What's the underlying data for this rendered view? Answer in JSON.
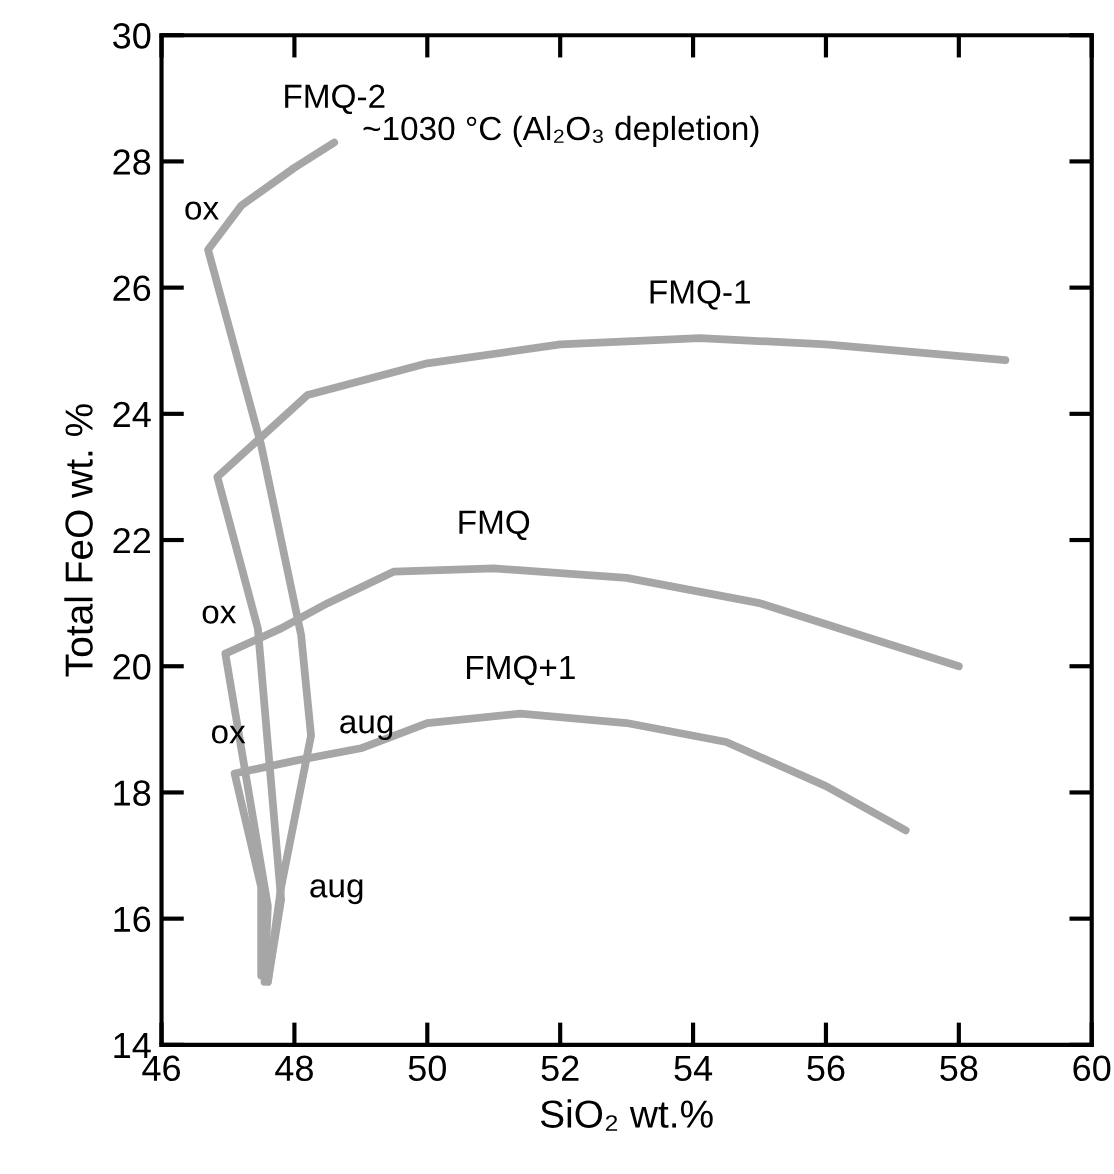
{
  "chart_data": {
    "type": "line",
    "xlabel": "SiO₂ wt.%",
    "ylabel": "Total FeO wt. %",
    "xlim": [
      46,
      60
    ],
    "ylim": [
      14,
      30
    ],
    "xticks": [
      46,
      48,
      50,
      52,
      54,
      56,
      58,
      60
    ],
    "yticks": [
      14,
      16,
      18,
      20,
      22,
      24,
      26,
      28,
      30
    ],
    "grid": false,
    "legend": false,
    "marker": "none",
    "line_style": "solid",
    "series": [
      {
        "name": "FMQ-2",
        "color": "#a6a6a6",
        "x": [
          48.6,
          48.0,
          47.2,
          46.7,
          47.5,
          48.1,
          48.25,
          47.8,
          47.6
        ],
        "values": [
          28.3,
          27.9,
          27.3,
          26.6,
          23.5,
          20.5,
          18.9,
          16.5,
          15.0
        ]
      },
      {
        "name": "FMQ-1",
        "color": "#a6a6a6",
        "x": [
          58.7,
          56,
          54.1,
          52,
          50,
          48.2,
          46.84,
          47.45,
          47.8,
          47.6
        ],
        "values": [
          24.85,
          25.1,
          25.2,
          25.1,
          24.8,
          24.3,
          23.0,
          20.6,
          16.3,
          15.0
        ]
      },
      {
        "name": "FMQ",
        "color": "#a6a6a6",
        "x": [
          58.0,
          56.5,
          55,
          53,
          51,
          49.5,
          48.5,
          47.8,
          46.96,
          47.6,
          47.55
        ],
        "values": [
          20.0,
          20.5,
          21.0,
          21.4,
          21.55,
          21.5,
          21.0,
          20.6,
          20.2,
          16.2,
          15.0
        ]
      },
      {
        "name": "FMQ+1",
        "color": "#a6a6a6",
        "x": [
          57.2,
          56,
          54.5,
          53,
          51.4,
          50,
          49,
          48.0,
          47.1,
          47.5,
          47.5
        ],
        "values": [
          17.4,
          18.1,
          18.8,
          19.1,
          19.25,
          19.1,
          18.7,
          18.5,
          18.3,
          16.5,
          15.1
        ]
      }
    ],
    "annotations": [
      {
        "text": "~1030 °C (Al₂O₃ depletion)",
        "x": 48.6,
        "y": 28.3
      },
      {
        "text": "ox",
        "x": 46.7,
        "y": 26.6
      },
      {
        "text": "ox",
        "x": 46.96,
        "y": 20.2
      },
      {
        "text": "ox",
        "x": 47.1,
        "y": 18.3
      },
      {
        "text": "aug",
        "x": 48.25,
        "y": 18.9
      },
      {
        "text": "aug",
        "x": 47.8,
        "y": 16.3
      }
    ]
  }
}
